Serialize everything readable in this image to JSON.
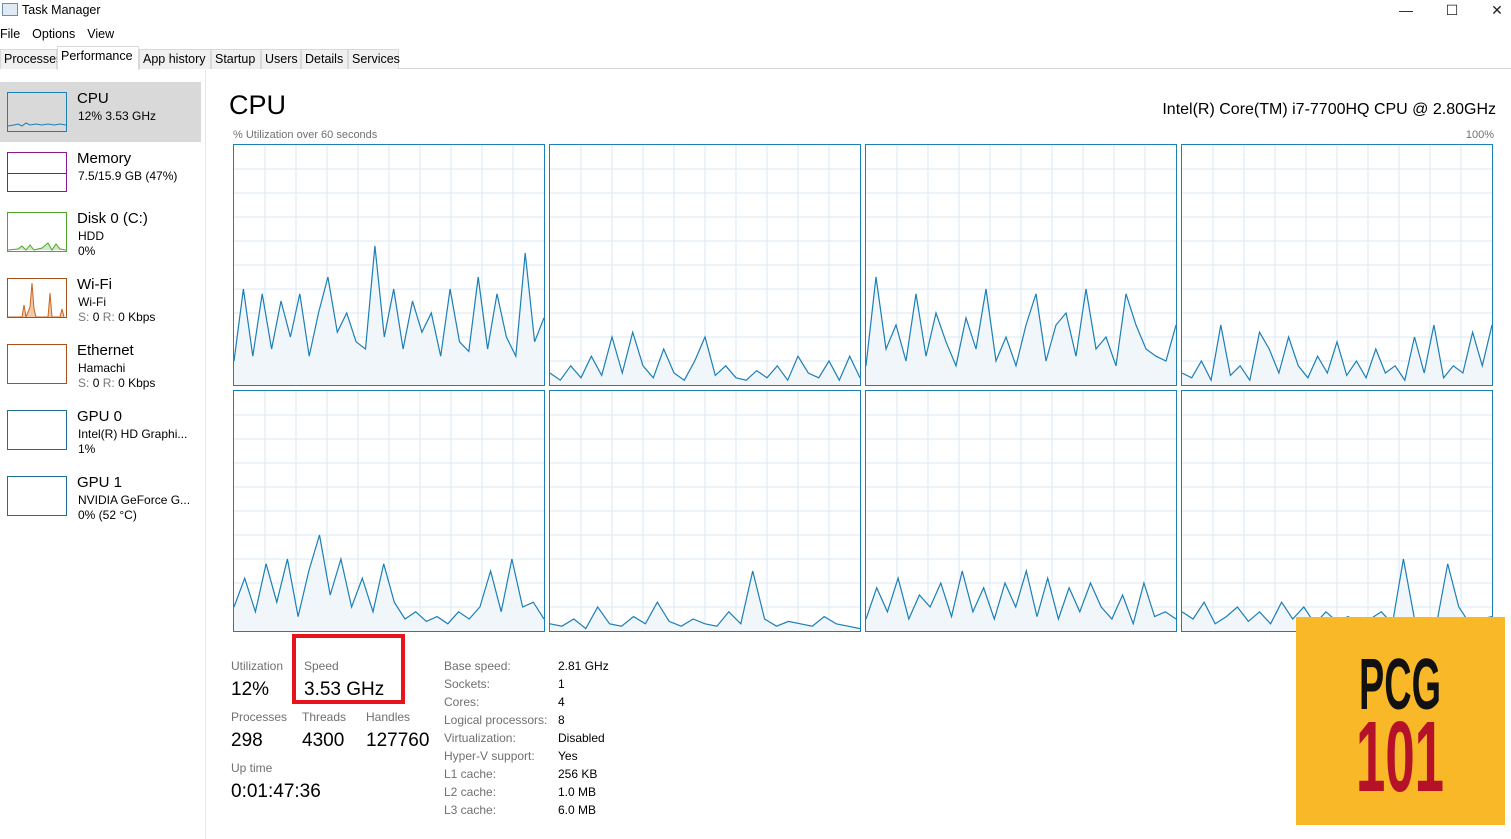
{
  "window": {
    "title": "Task Manager",
    "minimize": "—",
    "maximize": "☐",
    "close": "✕"
  },
  "menu": [
    "File",
    "Options",
    "View"
  ],
  "tabs": [
    "Processes",
    "Performance",
    "App history",
    "Startup",
    "Users",
    "Details",
    "Services"
  ],
  "active_tab": "Performance",
  "sidebar": [
    {
      "name": "CPU",
      "line1": "12%  3.53 GHz",
      "line2": "",
      "color": "#1b7fb8"
    },
    {
      "name": "Memory",
      "line1": "7.5/15.9 GB (47%)",
      "line2": "",
      "color": "#8b1a8f"
    },
    {
      "name": "Disk 0 (C:)",
      "line1": "HDD",
      "line2": "0%",
      "color": "#4ea82a"
    },
    {
      "name": "Wi-Fi",
      "line1": "Wi-Fi",
      "line2_s": "S:",
      "line2_sv": "0",
      "line2_r": "R:",
      "line2_rv": "0 Kbps",
      "color": "#a7501a"
    },
    {
      "name": "Ethernet",
      "line1": "Hamachi",
      "line2_s": "S:",
      "line2_sv": "0",
      "line2_r": "R:",
      "line2_rv": "0 Kbps",
      "color": "#a7501a"
    },
    {
      "name": "GPU 0",
      "line1": "Intel(R) HD Graphi...",
      "line2": "1%",
      "color": "#1b6f8f"
    },
    {
      "name": "GPU 1",
      "line1": "NVIDIA GeForce G...",
      "line2": "0%  (52 °C)",
      "color": "#1b6f8f"
    }
  ],
  "main": {
    "heading": "CPU",
    "cpu_name": "Intel(R) Core(TM) i7-7700HQ CPU @ 2.80GHz",
    "graph_label": "% Utilization over 60 seconds",
    "graph_max": "100%",
    "graph_color": "#1b7fb8",
    "core_utilization": [
      [
        10,
        40,
        12,
        38,
        15,
        35,
        20,
        38,
        12,
        30,
        45,
        22,
        30,
        18,
        15,
        58,
        20,
        40,
        15,
        35,
        22,
        30,
        12,
        40,
        18,
        14,
        45,
        15,
        38,
        20,
        12,
        55,
        18,
        28
      ],
      [
        5,
        2,
        8,
        3,
        12,
        4,
        20,
        5,
        22,
        8,
        3,
        15,
        5,
        2,
        10,
        20,
        4,
        8,
        3,
        2,
        6,
        3,
        8,
        2,
        12,
        5,
        3,
        10,
        2,
        12,
        3
      ],
      [
        8,
        45,
        15,
        25,
        10,
        38,
        12,
        30,
        18,
        8,
        28,
        15,
        40,
        10,
        20,
        8,
        25,
        38,
        10,
        25,
        30,
        12,
        40,
        15,
        20,
        8,
        38,
        25,
        15,
        12,
        10,
        25
      ],
      [
        5,
        3,
        10,
        2,
        25,
        4,
        8,
        2,
        22,
        15,
        5,
        20,
        8,
        3,
        12,
        5,
        18,
        4,
        10,
        3,
        15,
        5,
        8,
        2,
        20,
        5,
        25,
        3,
        8,
        5,
        22,
        8,
        25
      ]
    ],
    "core_utilization_row2": [
      [
        10,
        22,
        8,
        28,
        12,
        30,
        6,
        25,
        40,
        15,
        30,
        10,
        22,
        8,
        28,
        12,
        5,
        8,
        4,
        6,
        3,
        8,
        5,
        10,
        25,
        8,
        30,
        10,
        12,
        5
      ],
      [
        3,
        2,
        5,
        1,
        10,
        3,
        2,
        6,
        3,
        12,
        4,
        2,
        5,
        3,
        2,
        8,
        3,
        25,
        5,
        2,
        4,
        3,
        2,
        6,
        3,
        2,
        1
      ],
      [
        5,
        18,
        8,
        22,
        5,
        15,
        10,
        20,
        6,
        25,
        8,
        18,
        5,
        20,
        10,
        25,
        6,
        22,
        5,
        18,
        8,
        20,
        10,
        5,
        15,
        3,
        20,
        6,
        8,
        5
      ],
      [
        8,
        5,
        12,
        3,
        6,
        10,
        4,
        8,
        3,
        12,
        5,
        10,
        3,
        8,
        4,
        6,
        3,
        5,
        8,
        3,
        30,
        5,
        4,
        3,
        28,
        10,
        3,
        5,
        6
      ]
    ],
    "stats": {
      "utilization_label": "Utilization",
      "utilization": "12%",
      "speed_label": "Speed",
      "speed": "3.53 GHz",
      "processes_label": "Processes",
      "processes": "298",
      "threads_label": "Threads",
      "threads": "4300",
      "handles_label": "Handles",
      "handles": "127760",
      "uptime_label": "Up time",
      "uptime": "0:01:47:36"
    },
    "info": [
      {
        "label": "Base speed:",
        "value": "2.81 GHz"
      },
      {
        "label": "Sockets:",
        "value": "1"
      },
      {
        "label": "Cores:",
        "value": "4"
      },
      {
        "label": "Logical processors:",
        "value": "8"
      },
      {
        "label": "Virtualization:",
        "value": "Disabled"
      },
      {
        "label": "Hyper-V support:",
        "value": "Yes"
      },
      {
        "label": "L1 cache:",
        "value": "256 KB"
      },
      {
        "label": "L2 cache:",
        "value": "1.0 MB"
      },
      {
        "label": "L3 cache:",
        "value": "6.0 MB"
      }
    ]
  },
  "watermark": {
    "line1": "PCG",
    "line2": "101",
    "bg": "#f8b828",
    "color1": "#111111",
    "color2": "#b5122a"
  }
}
